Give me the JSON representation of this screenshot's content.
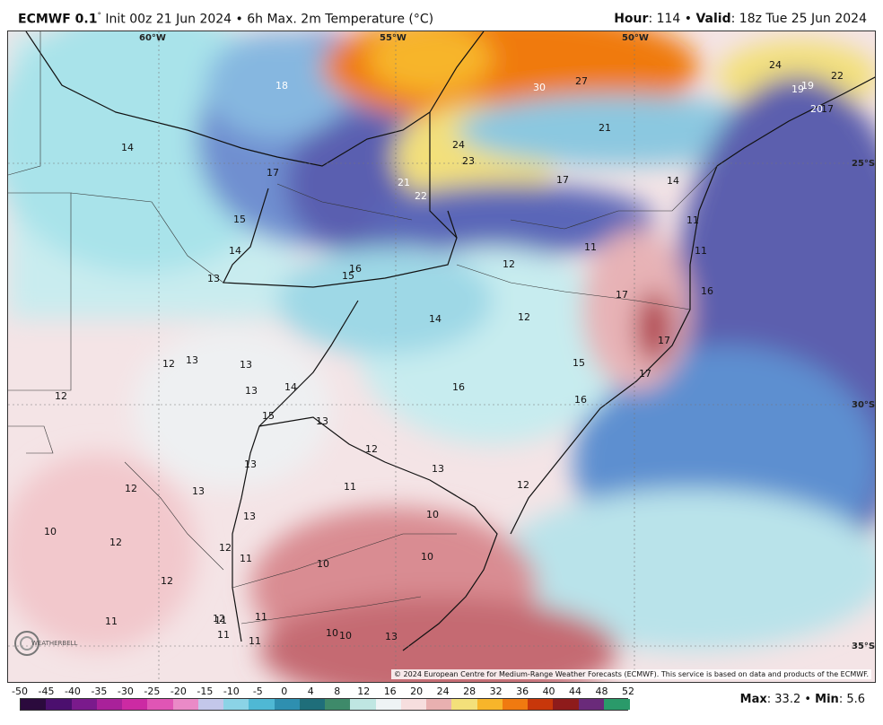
{
  "header": {
    "model": "ECMWF 0.1",
    "deg": "°",
    "init_text": " Init 00z 21 Jun 2024 • 6h Max. 2m Temperature (°C)",
    "hour_label": "Hour",
    "hour_value": ": 114 • ",
    "valid_label": "Valid",
    "valid_value": ": 18z Tue 25 Jun 2024"
  },
  "map": {
    "lon_labels": [
      "60°W",
      "55°W",
      "50°W"
    ],
    "lat_labels": [
      "25°S",
      "30°S",
      "35°S"
    ],
    "temperature_labels": [
      "18",
      "14",
      "17",
      "15",
      "14",
      "13",
      "12",
      "13",
      "13",
      "12",
      "13",
      "14",
      "15",
      "13",
      "13",
      "12",
      "13",
      "13",
      "12",
      "10",
      "12",
      "12",
      "11",
      "12",
      "11",
      "11",
      "11",
      "11",
      "11",
      "12",
      "11",
      "10",
      "10",
      "10",
      "10",
      "10",
      "13",
      "12",
      "13",
      "16",
      "14",
      "12",
      "15",
      "16",
      "17",
      "17",
      "16",
      "15",
      "12",
      "11",
      "17",
      "16",
      "11",
      "14",
      "17",
      "11",
      "21",
      "22",
      "24",
      "23",
      "21",
      "27",
      "30",
      "24",
      "19",
      "19",
      "22",
      "20",
      "17"
    ],
    "copyright": "© 2024 European Centre for Medium-Range Weather Forecasts (ECMWF). This service is based on data and products of the ECMWF.",
    "logo_text": "WEATHERBELL"
  },
  "colorbar": {
    "ticks": [
      "-50",
      "-45",
      "-40",
      "-35",
      "-30",
      "-25",
      "-20",
      "-15",
      "-10",
      "-5",
      "0",
      "4",
      "8",
      "12",
      "16",
      "20",
      "24",
      "28",
      "32",
      "36",
      "40",
      "44",
      "48",
      "52"
    ],
    "colors": [
      "#2b0a3d",
      "#4b0f6e",
      "#7a1a8c",
      "#a9219a",
      "#cc2aa3",
      "#e055b5",
      "#ea8ac7",
      "#c3c7ea",
      "#8bd3e6",
      "#4fb8d4",
      "#2e8fb0",
      "#1f6e7a",
      "#3e8a6a",
      "#bfe6e2",
      "#eef3f5",
      "#f6dede",
      "#e8b0b0",
      "#f3e07a",
      "#f7b52a",
      "#f07a10",
      "#c8370a",
      "#8e1b1b",
      "#6a2a7a",
      "#2a9a6a"
    ],
    "max_label": "Max",
    "max_value": ": 33.2 • ",
    "min_label": "Min",
    "min_value": ": 5.6"
  }
}
